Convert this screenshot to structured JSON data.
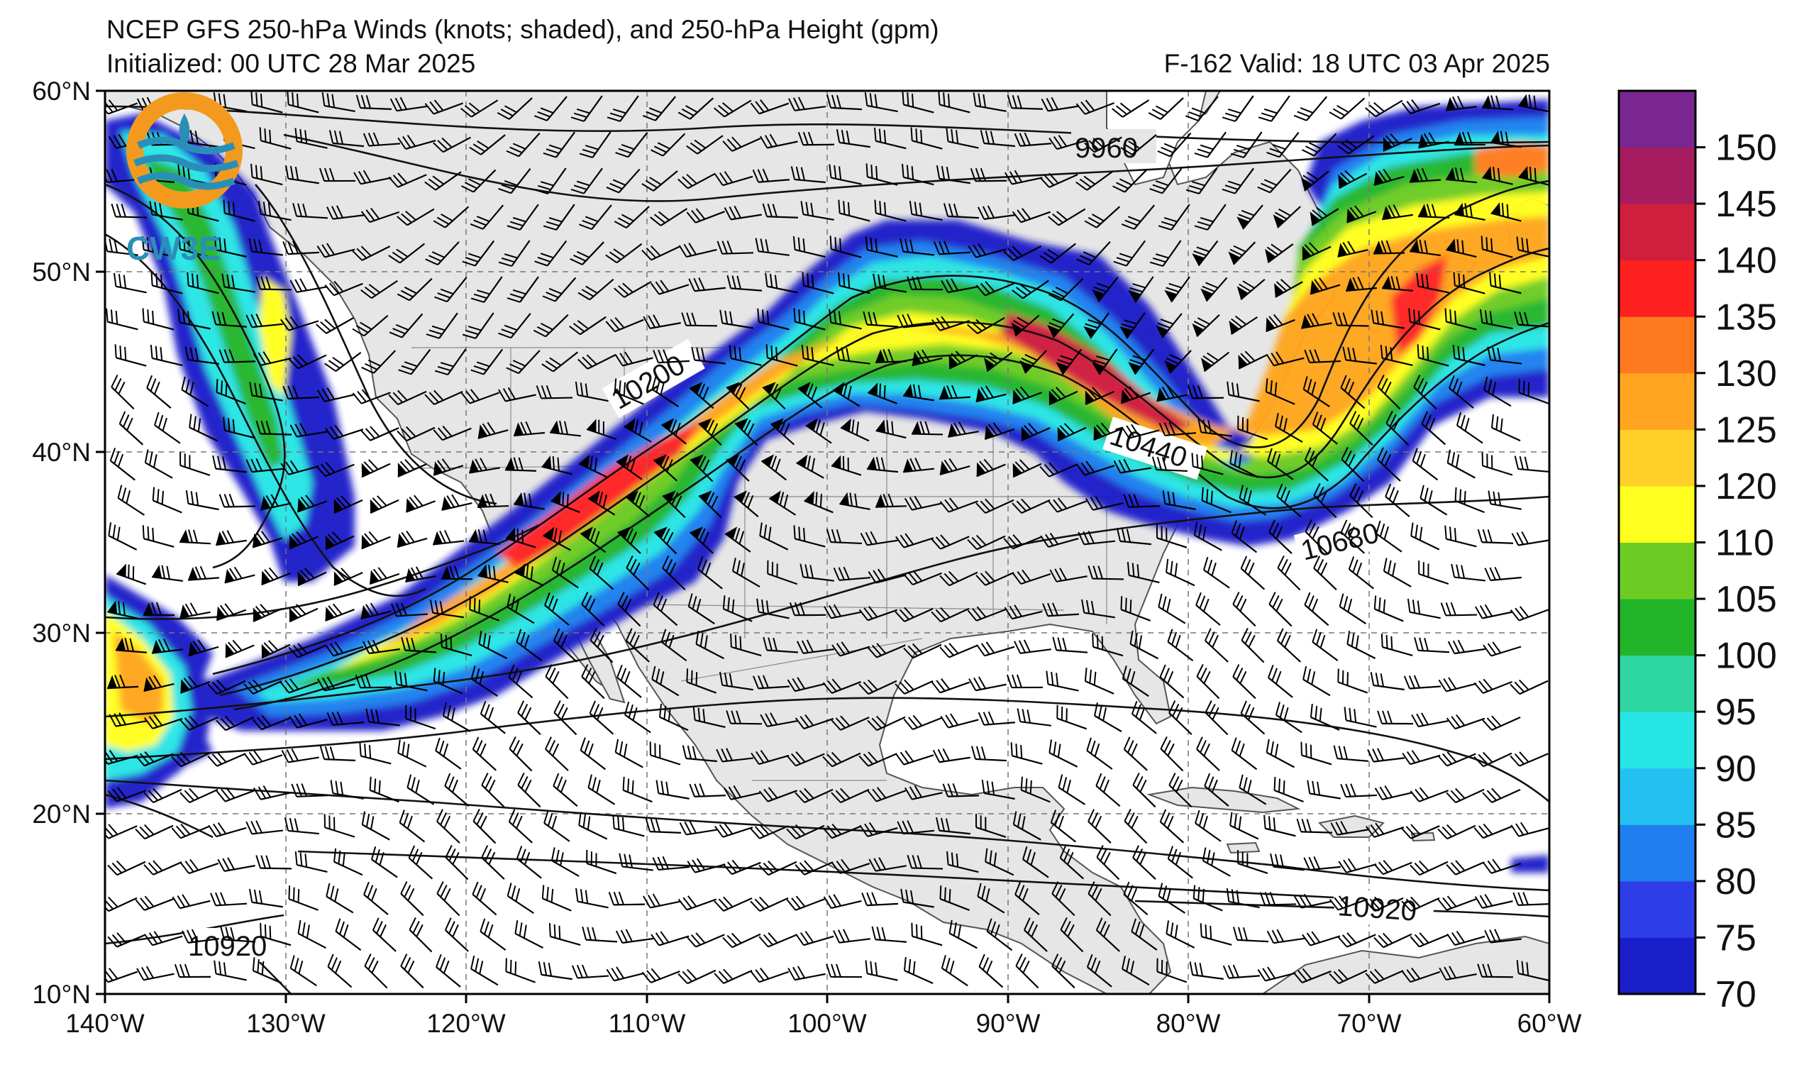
{
  "title": {
    "line1": "NCEP GFS 250-hPa Winds (knots; shaded), and 250-hPa Height (gpm)",
    "line2": "Initialized: 00 UTC 28 Mar 2025",
    "right": "F-162  Valid: 18 UTC 03 Apr 2025"
  },
  "logo": {
    "text": "CW3E",
    "ring_color": "#f39a1e",
    "wave_color": "#2a8fb8"
  },
  "map": {
    "lon_range": [
      -140,
      -60
    ],
    "lat_range": [
      10,
      60
    ],
    "lon_ticks": [
      "140°W",
      "130°W",
      "120°W",
      "110°W",
      "100°W",
      "90°W",
      "80°W",
      "70°W",
      "60°W"
    ],
    "lat_ticks": [
      "60°N",
      "50°N",
      "40°N",
      "30°N",
      "20°N",
      "10°N"
    ],
    "grid": "dashed",
    "land_color": "#e6e6e6",
    "ocean_color": "#ffffff"
  },
  "contour_labels": [
    "9960",
    "10200",
    "10440",
    "10680",
    "10920",
    "10920"
  ],
  "colorbar": {
    "levels": [
      70,
      75,
      80,
      85,
      90,
      95,
      100,
      105,
      110,
      120,
      125,
      130,
      135,
      140,
      145,
      150
    ],
    "labels": [
      "70",
      "75",
      "80",
      "85",
      "90",
      "95",
      "100",
      "105",
      "110",
      "120",
      "125",
      "130",
      "135",
      "140",
      "145",
      "150"
    ],
    "colors": [
      "#1a1fc9",
      "#2d3de8",
      "#1f7ff0",
      "#23c1f2",
      "#27e5e5",
      "#2ed6a2",
      "#22b52a",
      "#6ccc23",
      "#ffff1f",
      "#ffd02a",
      "#ffa51f",
      "#ff7a1f",
      "#ff2020",
      "#d01e3d",
      "#a61c5e",
      "#7a2690"
    ]
  }
}
